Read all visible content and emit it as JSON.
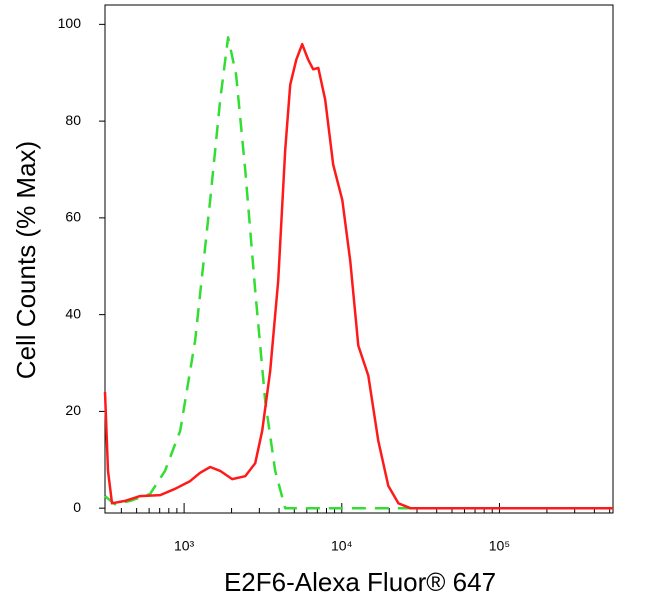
{
  "chart_data": {
    "type": "line",
    "xlabel": "E2F6-Alexa Fluor® 647",
    "ylabel": "Cell Counts (% Max)",
    "xscale": "log",
    "xlim": [
      315,
      525000
    ],
    "ylim": [
      -1,
      104
    ],
    "xticks": [
      {
        "value": 1000,
        "label": "10³"
      },
      {
        "value": 10000,
        "label": "10⁴"
      },
      {
        "value": 100000,
        "label": "10⁵"
      }
    ],
    "xminorticks": [
      400,
      500,
      600,
      700,
      800,
      900,
      2000,
      3000,
      4000,
      5000,
      6000,
      7000,
      8000,
      9000,
      20000,
      30000,
      40000,
      50000,
      60000,
      70000,
      80000,
      90000,
      200000,
      300000,
      400000,
      500000
    ],
    "yticks": [
      0,
      20,
      40,
      60,
      80,
      100
    ],
    "series": [
      {
        "color": "#ff1a1a",
        "dash": false,
        "x": [
          315,
          329,
          349,
          422,
          525,
          705,
          877,
          1092,
          1263,
          1463,
          1693,
          2019,
          2440,
          2823,
          3127,
          3515,
          3953,
          4377,
          4710,
          5144,
          5614,
          6126,
          6589,
          7093,
          7852,
          8829,
          10070,
          11320,
          12730,
          14730,
          17050,
          19730,
          22850,
          27230,
          525000
        ],
        "values": [
          24,
          7.7,
          1,
          1.5,
          2.5,
          2.7,
          4,
          5.6,
          7.3,
          8.5,
          7.7,
          6,
          6.6,
          9.3,
          16,
          28.4,
          47,
          74,
          87.5,
          92.7,
          95.9,
          92.7,
          90.7,
          91,
          84.4,
          71,
          63.7,
          51,
          33.6,
          27.4,
          13.9,
          4.6,
          1,
          0,
          0
        ]
      },
      {
        "color": "#33dd33",
        "dash": true,
        "x": [
          315,
          365,
          454,
          608,
          757,
          944,
          1175,
          1463,
          1693,
          1901,
          2138,
          2440,
          2823,
          3268,
          3784,
          4377,
          525000
        ],
        "values": [
          2.5,
          0.8,
          1.5,
          2.9,
          7.7,
          16,
          34.6,
          63.7,
          84.4,
          97.3,
          89.6,
          70,
          45,
          22.2,
          7.7,
          0,
          0
        ]
      }
    ]
  }
}
